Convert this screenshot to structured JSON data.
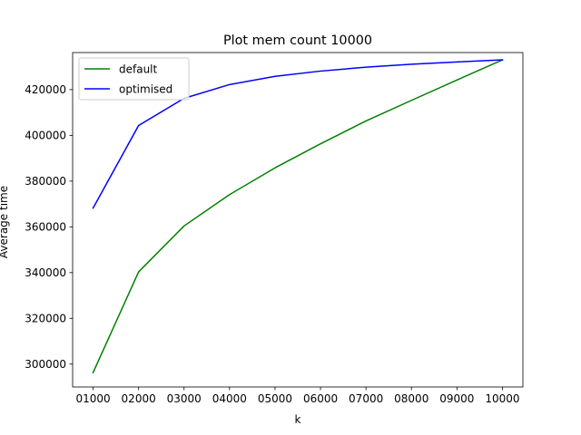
{
  "chart_data": {
    "type": "line",
    "title": "Plot mem count 10000",
    "xlabel": "k",
    "ylabel": "Average time",
    "categories": [
      "01000",
      "02000",
      "03000",
      "04000",
      "05000",
      "06000",
      "07000",
      "08000",
      "09000",
      "10000"
    ],
    "x": [
      1000,
      2000,
      3000,
      4000,
      5000,
      6000,
      7000,
      8000,
      9000,
      10000
    ],
    "xlim": [
      550,
      10450
    ],
    "ylim": [
      290000,
      436200
    ],
    "yticks": [
      300000,
      320000,
      340000,
      360000,
      380000,
      400000,
      420000
    ],
    "ytick_labels": [
      "300000",
      "320000",
      "340000",
      "360000",
      "380000",
      "400000",
      "420000"
    ],
    "grid": false,
    "legend_position": "upper left",
    "series": [
      {
        "name": "default",
        "color": "#008000",
        "values": [
          296300,
          340300,
          360400,
          374100,
          385800,
          396300,
          406300,
          415300,
          424200,
          433000
        ]
      },
      {
        "name": "optimised",
        "color": "#0000ff",
        "values": [
          368200,
          404300,
          416200,
          422200,
          425800,
          428100,
          429800,
          431100,
          432100,
          433000
        ]
      }
    ]
  }
}
